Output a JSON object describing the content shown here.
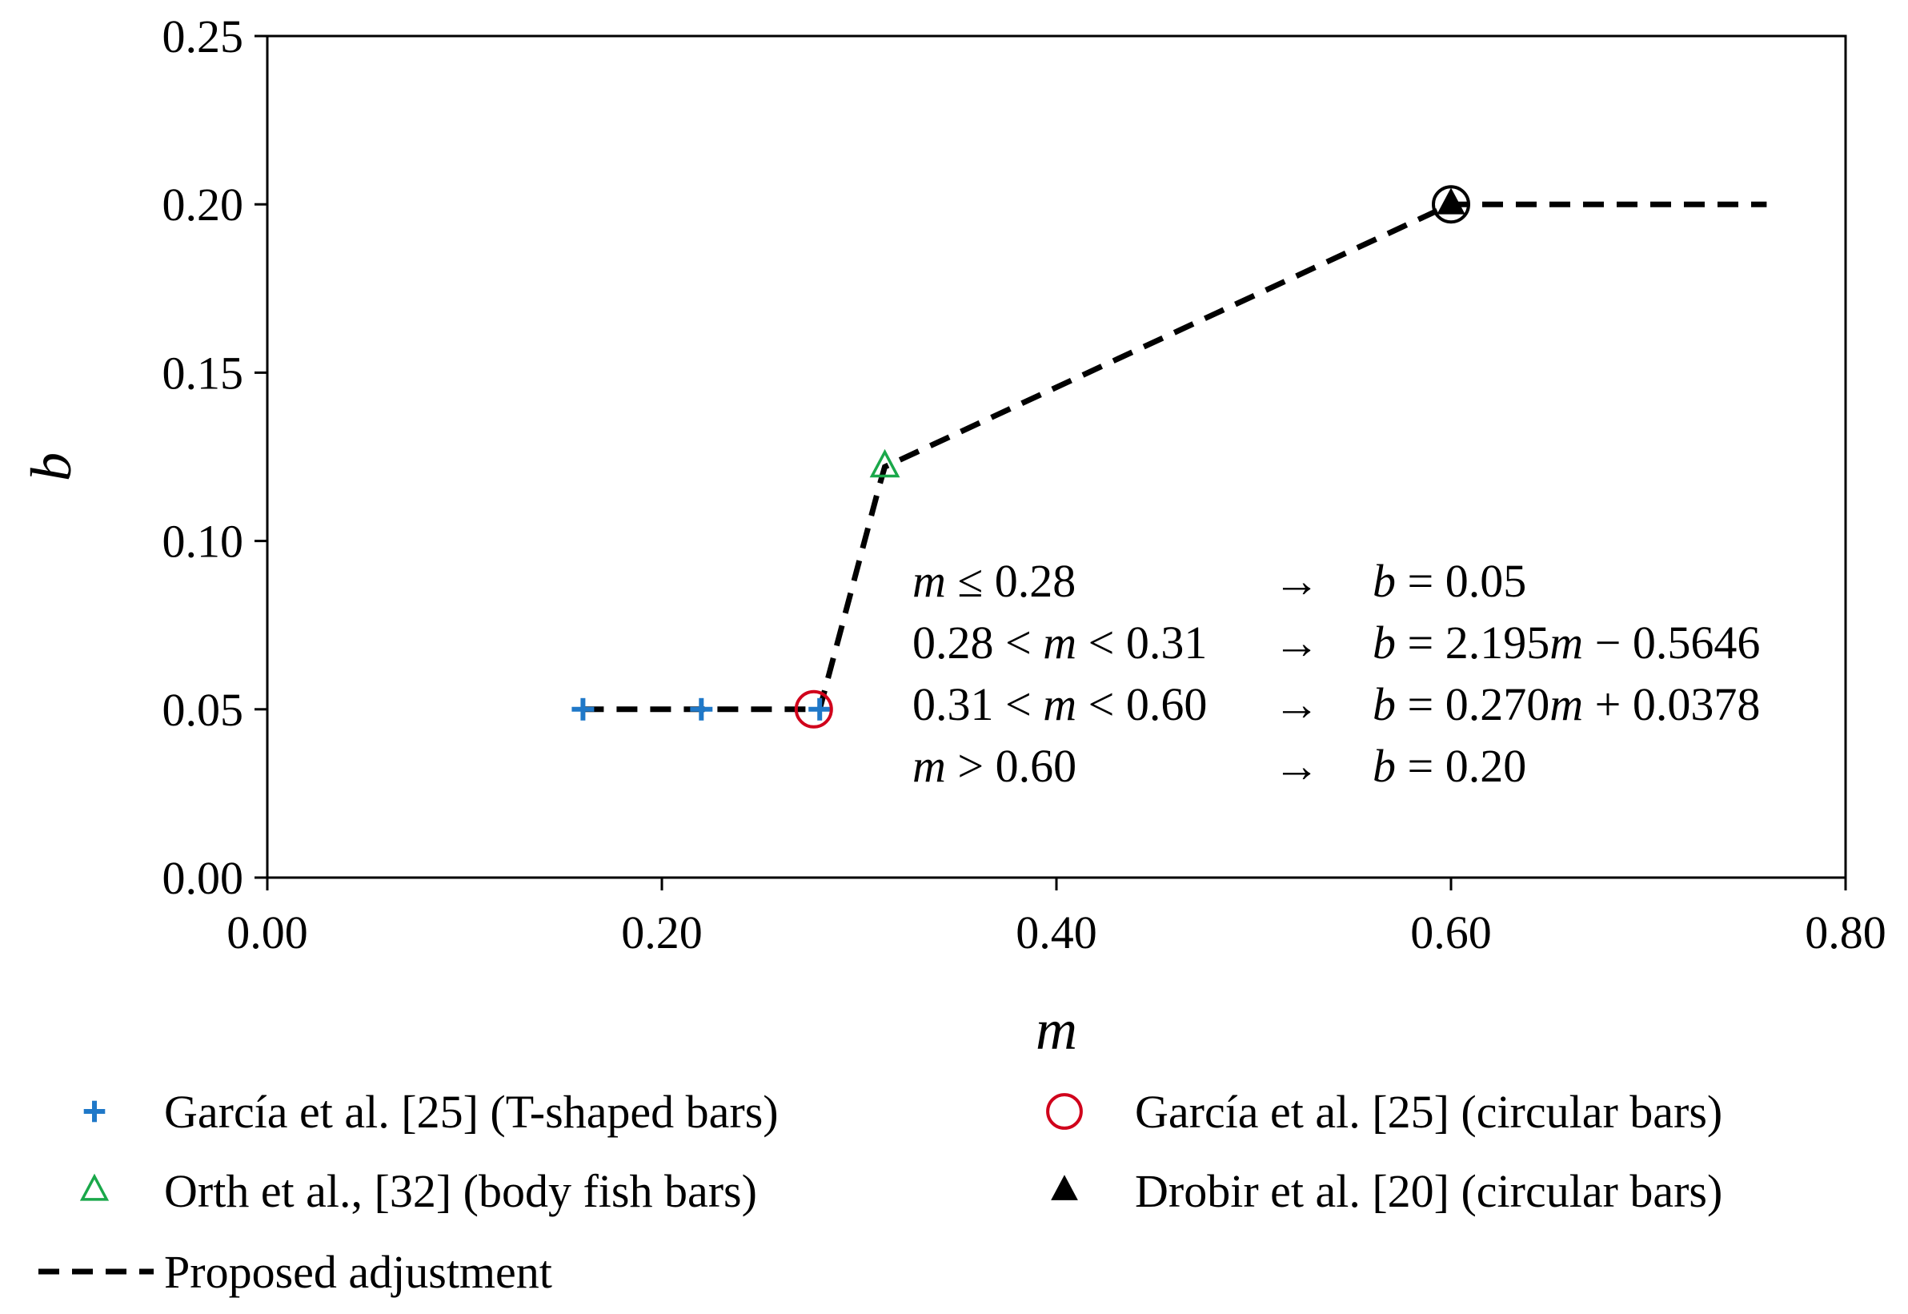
{
  "chart_data": {
    "type": "scatter",
    "xlabel": "m",
    "ylabel": "b",
    "xlim": [
      0.0,
      0.8
    ],
    "ylim": [
      0.0,
      0.25
    ],
    "x_ticks": [
      "0.00",
      "0.20",
      "0.40",
      "0.60",
      "0.80"
    ],
    "y_ticks": [
      "0.00",
      "0.05",
      "0.10",
      "0.15",
      "0.20",
      "0.25"
    ],
    "series": [
      {
        "name": "García et al. [25] (T-shaped bars)",
        "marker": "plus",
        "color": "#1f78c8",
        "points": [
          [
            0.16,
            0.05
          ],
          [
            0.22,
            0.05
          ],
          [
            0.28,
            0.05
          ]
        ]
      },
      {
        "name": "García et al. [25] (circular bars)",
        "marker": "circle",
        "color": "#d0021b",
        "points": [
          [
            0.277,
            0.05
          ]
        ]
      },
      {
        "name": "Orth et al., [32] (body fish bars)",
        "marker": "triangle-open",
        "color": "#1aa84a",
        "points": [
          [
            0.313,
            0.122
          ]
        ]
      },
      {
        "name": "Drobir et al. [20] (circular bars)",
        "marker": "triangle-filled",
        "color": "#000000",
        "points": [
          [
            0.6,
            0.2
          ]
        ]
      },
      {
        "name": "Proposed adjustment",
        "marker": "dashed-line",
        "color": "#000000",
        "points": [
          [
            0.16,
            0.05
          ],
          [
            0.28,
            0.05
          ],
          [
            0.31,
            0.1159
          ],
          [
            0.313,
            0.122
          ],
          [
            0.6,
            0.2
          ],
          [
            0.76,
            0.2
          ]
        ]
      }
    ],
    "extra_markers": [
      {
        "marker": "circle-open-black",
        "color": "#000000",
        "x": 0.6,
        "y": 0.2
      }
    ],
    "annotation": [
      {
        "cond": [
          "m",
          " ≤ 0.28"
        ],
        "eq": [
          "b",
          " = 0.05"
        ]
      },
      {
        "cond": [
          "0.28 < ",
          "m",
          " < 0.31"
        ],
        "eq": [
          "b",
          " = 2.195",
          "m",
          " − 0.5646"
        ]
      },
      {
        "cond": [
          "0.31 < ",
          "m",
          " < 0.60"
        ],
        "eq": [
          "b",
          " = 0.270",
          "m",
          " + 0.0378"
        ]
      },
      {
        "cond": [
          "m",
          " > 0.60"
        ],
        "eq": [
          "b",
          " = 0.20"
        ]
      }
    ],
    "arrow": "→",
    "legend_position": "bottom"
  }
}
